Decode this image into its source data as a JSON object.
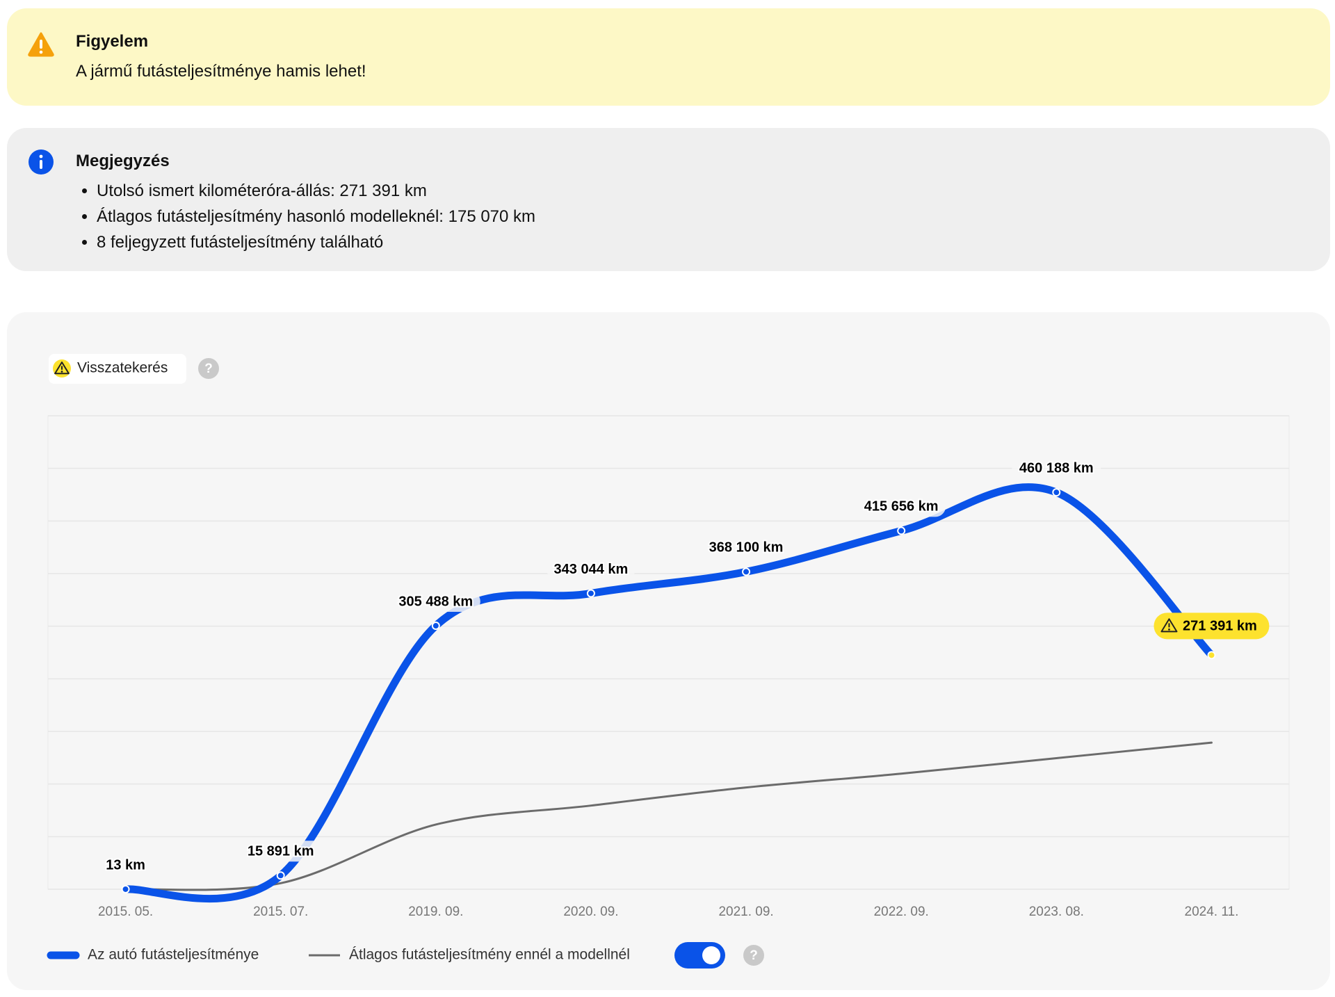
{
  "warning": {
    "title": "Figyelem",
    "text": "A jármű futásteljesítménye hamis lehet!"
  },
  "note": {
    "title": "Megjegyzés",
    "items": [
      "Utolsó ismert kilométeróra-állás: 271 391 km",
      "Átlagos futásteljesítmény hasonló modelleknél: 175 070 km",
      "8 feljegyzett futásteljesítmény található"
    ]
  },
  "badge": "Visszatekerés",
  "help": "?",
  "chart_data": {
    "type": "line",
    "categories": [
      "2015. 05.",
      "2015. 07.",
      "2019. 09.",
      "2020. 09.",
      "2021. 09.",
      "2022. 09.",
      "2023. 08.",
      "2024. 11."
    ],
    "series": [
      {
        "name": "Az autó futásteljesítménye",
        "color": "#0a53e8",
        "values": [
          13,
          15891,
          305488,
          343044,
          368100,
          415656,
          460188,
          271391
        ],
        "value_labels": [
          "13 km",
          "15 891 km",
          "305 488 km",
          "343 044 km",
          "368 100 km",
          "415 656 km",
          "460 188 km",
          "271 391 km"
        ]
      },
      {
        "name": "Átlagos futásteljesítmény ennél a modellnél",
        "color": "#6b6b6b",
        "values": [
          0,
          7000,
          75000,
          97000,
          118000,
          134000,
          152000,
          170000
        ]
      }
    ],
    "ylim": [
      0,
      549000
    ],
    "yticks": [
      0,
      61000,
      122000,
      183000,
      244000,
      305000,
      366000,
      427000,
      488000,
      549000
    ],
    "grid": true
  }
}
